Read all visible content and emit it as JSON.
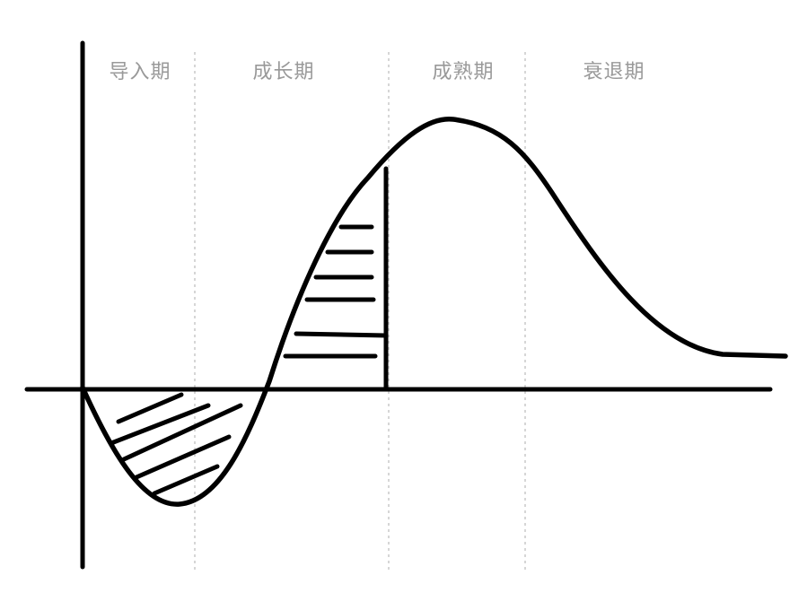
{
  "stages": {
    "intro": "导入期",
    "growth": "成长期",
    "maturity": "成熟期",
    "decline": "衰退期"
  },
  "colors": {
    "curve": "#000000",
    "divider": "#c8c8c8",
    "label": "#999999"
  }
}
